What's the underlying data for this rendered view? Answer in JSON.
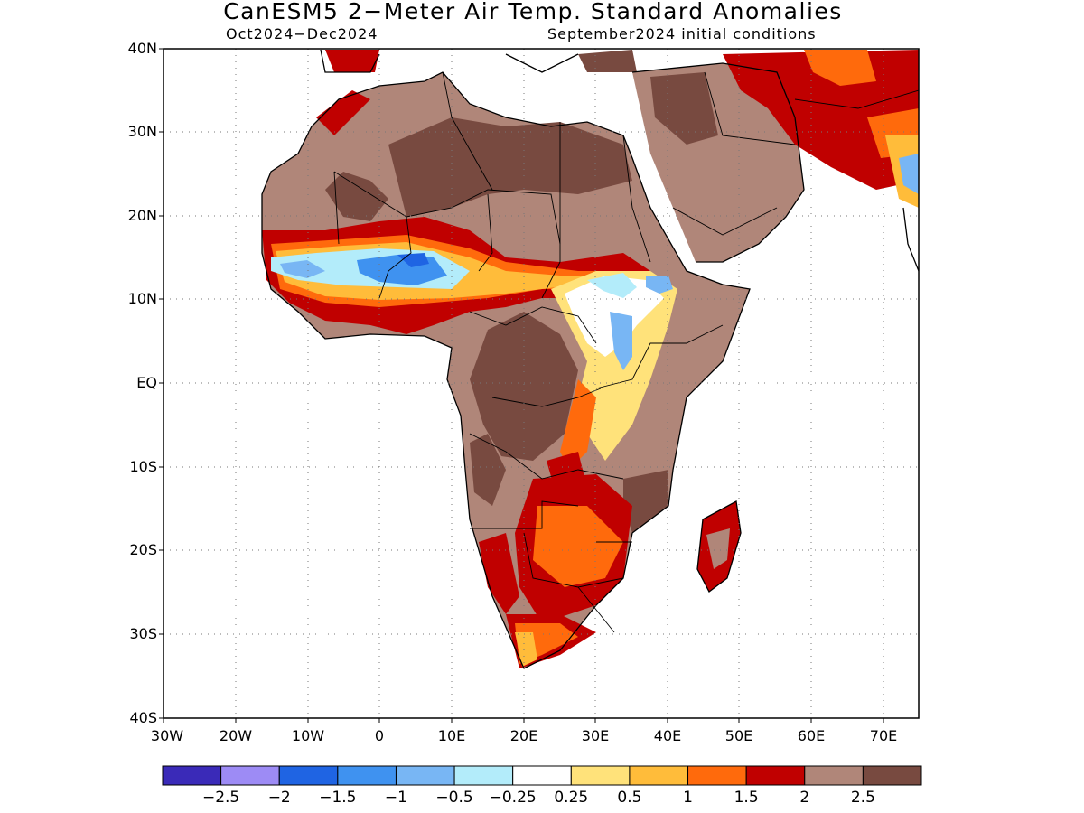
{
  "title": "CanESM5 2−Meter Air Temp. Standard Anomalies",
  "subtitle_left": "Oct2024−Dec2024",
  "subtitle_right": "September2024 initial conditions",
  "lat_ticks": [
    "40N",
    "30N",
    "20N",
    "10N",
    "EQ",
    "10S",
    "20S",
    "30S",
    "40S"
  ],
  "lon_ticks": [
    "30W",
    "20W",
    "10W",
    "0",
    "10E",
    "20E",
    "30E",
    "40E",
    "50E",
    "60E",
    "70E"
  ],
  "colorbar": {
    "colors": [
      "#3a2ab8",
      "#9d8bf5",
      "#1f64e3",
      "#3f92f0",
      "#78b6f4",
      "#b3ecfa",
      "#ffffff",
      "#ffe27a",
      "#ffbc3a",
      "#ff6a0c",
      "#c00000",
      "#b08679",
      "#784a40"
    ],
    "labels": [
      "−2.5",
      "−2",
      "−1.5",
      "−1",
      "−0.5",
      "−0.25",
      "0.25",
      "0.5",
      "1",
      "1.5",
      "2",
      "2.5"
    ]
  },
  "chart_data": {
    "type": "heatmap",
    "title": "CanESM5 2−Meter Air Temp. Standard Anomalies",
    "subtitle": "Oct2024−Dec2024 / September2024 initial conditions",
    "variable": "2-meter air temperature standard anomaly",
    "lon_range": [
      -30,
      75
    ],
    "lat_range": [
      -40,
      40
    ],
    "levels": [
      -2.5,
      -2,
      -1.5,
      -1,
      -0.5,
      -0.25,
      0.25,
      0.5,
      1,
      1.5,
      2,
      2.5
    ]
  }
}
